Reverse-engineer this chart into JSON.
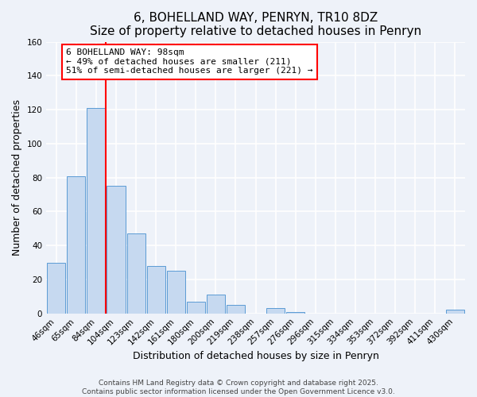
{
  "title": "6, BOHELLAND WAY, PENRYN, TR10 8DZ",
  "subtitle": "Size of property relative to detached houses in Penryn",
  "xlabel": "Distribution of detached houses by size in Penryn",
  "ylabel": "Number of detached properties",
  "categories": [
    "46sqm",
    "65sqm",
    "84sqm",
    "104sqm",
    "123sqm",
    "142sqm",
    "161sqm",
    "180sqm",
    "200sqm",
    "219sqm",
    "238sqm",
    "257sqm",
    "276sqm",
    "296sqm",
    "315sqm",
    "334sqm",
    "353sqm",
    "372sqm",
    "392sqm",
    "411sqm",
    "430sqm"
  ],
  "values": [
    30,
    81,
    121,
    75,
    47,
    28,
    25,
    7,
    11,
    5,
    0,
    3,
    1,
    0,
    0,
    0,
    0,
    0,
    0,
    0,
    2
  ],
  "bar_color": "#c6d9f0",
  "bar_edge_color": "#5b9bd5",
  "red_line_x": 3.0,
  "annotation_title": "6 BOHELLAND WAY: 98sqm",
  "annotation_line1": "← 49% of detached houses are smaller (211)",
  "annotation_line2": "51% of semi-detached houses are larger (221) →",
  "ylim": [
    0,
    160
  ],
  "yticks": [
    0,
    20,
    40,
    60,
    80,
    100,
    120,
    140,
    160
  ],
  "footer1": "Contains HM Land Registry data © Crown copyright and database right 2025.",
  "footer2": "Contains public sector information licensed under the Open Government Licence v3.0.",
  "background_color": "#eef2f9",
  "grid_color": "#ffffff",
  "title_fontsize": 11,
  "axis_label_fontsize": 9,
  "tick_fontsize": 7.5,
  "annotation_fontsize": 8,
  "footer_fontsize": 6.5
}
